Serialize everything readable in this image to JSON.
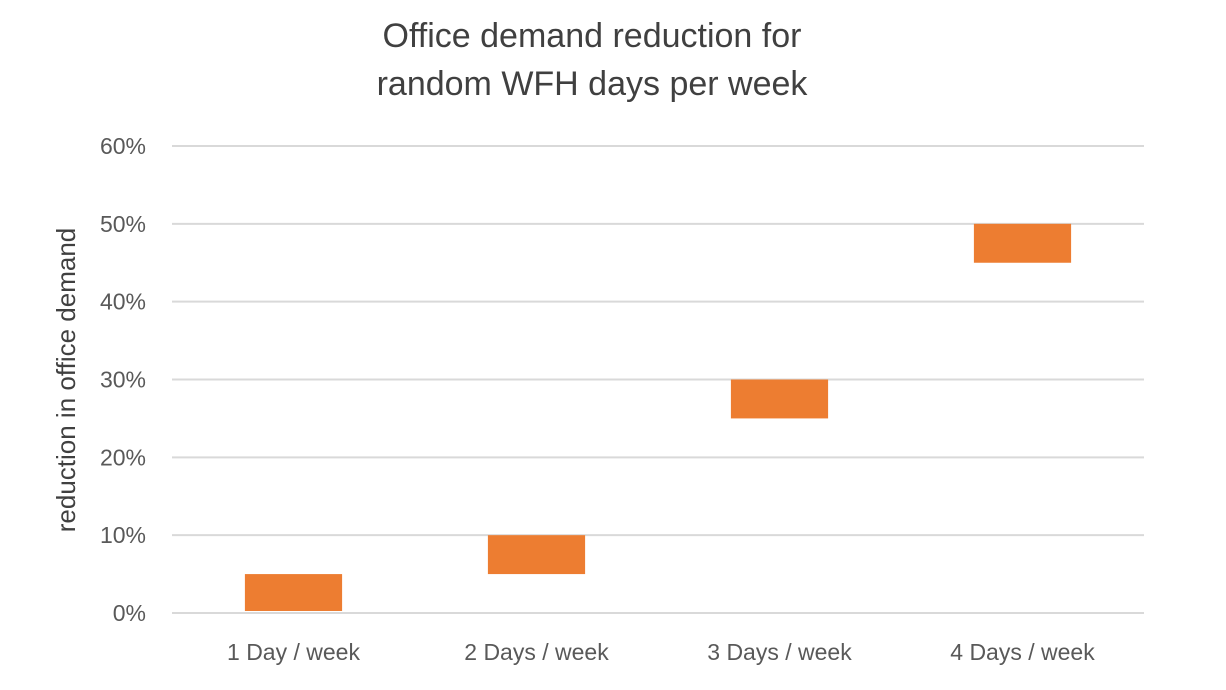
{
  "chart_data": {
    "type": "bar",
    "subtype": "floating-range",
    "title_lines": [
      "Office demand reduction for",
      "random WFH days per week"
    ],
    "xlabel": "",
    "ylabel": "reduction in office demand",
    "categories": [
      "1 Day / week",
      "2 Days / week",
      "3 Days / week",
      "4 Days / week"
    ],
    "ranges": [
      {
        "low": 0,
        "high": 5
      },
      {
        "low": 5,
        "high": 10
      },
      {
        "low": 25,
        "high": 30
      },
      {
        "low": 45,
        "high": 50
      }
    ],
    "ylim": [
      0,
      60
    ],
    "yticks": [
      0,
      10,
      20,
      30,
      40,
      50,
      60
    ],
    "ytick_labels": [
      "0%",
      "10%",
      "20%",
      "30%",
      "40%",
      "50%",
      "60%"
    ],
    "grid": true,
    "legend": "none",
    "colors": {
      "bar": "#ED7D31",
      "grid": "#D9D9D9",
      "text": "#595959"
    }
  }
}
